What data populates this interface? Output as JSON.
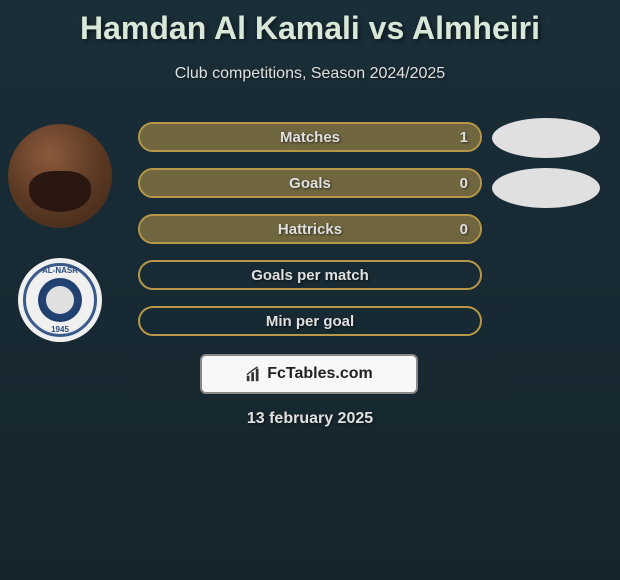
{
  "title": "Hamdan Al Kamali vs Almheiri",
  "subtitle": "Club competitions, Season 2024/2025",
  "date": "13 february 2025",
  "brand": "FcTables.com",
  "badge": {
    "top_text": "AL-NASR",
    "bottom_text": "1945"
  },
  "stats": [
    {
      "label": "Matches",
      "value": "1",
      "fill_percent": 100,
      "border_color": "#b89848",
      "fill_color": "#b89848"
    },
    {
      "label": "Goals",
      "value": "0",
      "fill_percent": 100,
      "border_color": "#b89848",
      "fill_color": "#b89848"
    },
    {
      "label": "Hattricks",
      "value": "0",
      "fill_percent": 100,
      "border_color": "#b89848",
      "fill_color": "#b89848"
    },
    {
      "label": "Goals per match",
      "value": "",
      "fill_percent": 0,
      "border_color": "#b89848",
      "fill_color": "#b89848"
    },
    {
      "label": "Min per goal",
      "value": "",
      "fill_percent": 0,
      "border_color": "#b89848",
      "fill_color": "#b89848"
    }
  ],
  "colors": {
    "background_top": "#1a2e38",
    "background_bottom": "#15252d",
    "title_color": "#d8e8d8",
    "text_color": "#e0e0e0",
    "bar_border": "#b89848",
    "bar_fill": "#b89848"
  }
}
